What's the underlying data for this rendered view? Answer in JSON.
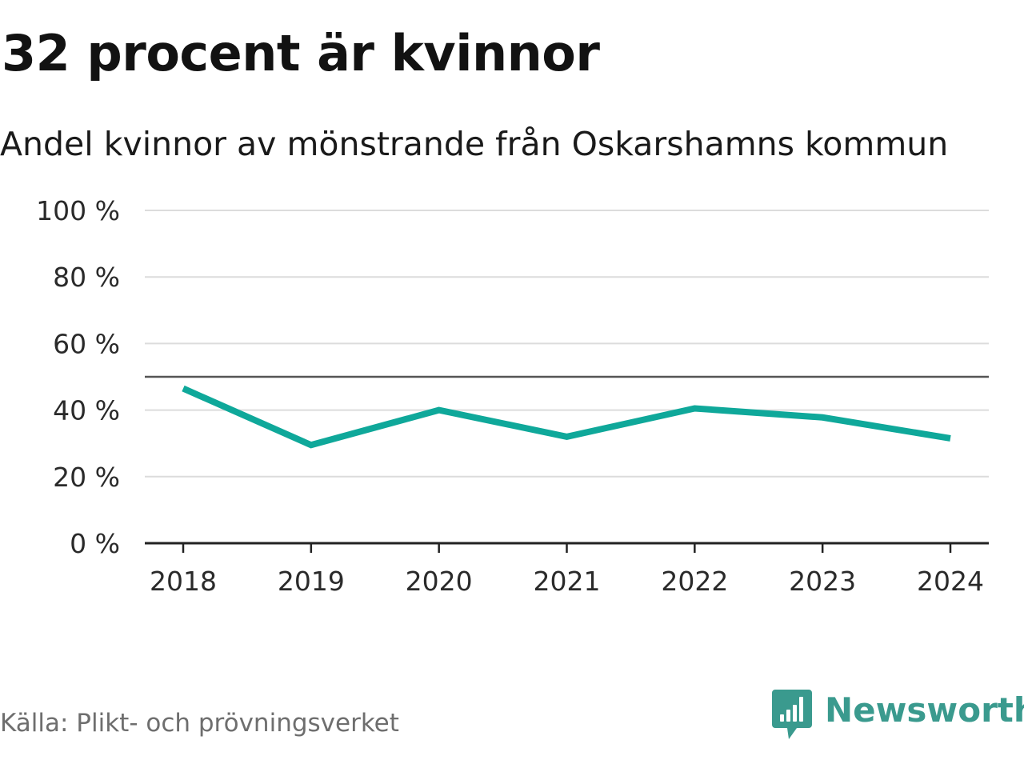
{
  "header": {
    "title": "32 procent är kvinnor",
    "subtitle": "Andel kvinnor av mönstrande från Oskarshamns kommun"
  },
  "footer": {
    "source": "Källa: Plikt- och prövningsverket",
    "brand": "Newsworthy"
  },
  "colors": {
    "line": "#0fa89a",
    "reference_line": "#555555",
    "grid": "#dcdcdc",
    "axis": "#222222",
    "brand": "#3a9a8e"
  },
  "icons": {
    "logo": "bar-chart-speech-bubble-icon"
  },
  "chart_data": {
    "type": "line",
    "title": "32 procent är kvinnor",
    "subtitle": "Andel kvinnor av mönstrande från Oskarshamns kommun",
    "xlabel": "",
    "ylabel": "",
    "categories": [
      "2018",
      "2019",
      "2020",
      "2021",
      "2022",
      "2023",
      "2024"
    ],
    "series": [
      {
        "values": [
          46.5,
          29.5,
          40,
          32,
          40.5,
          37.8,
          31.5
        ]
      }
    ],
    "reference_line": 50,
    "ylim": [
      0,
      100
    ],
    "yticks": [
      0,
      20,
      40,
      60,
      80,
      100
    ],
    "ytick_labels": [
      "0 %",
      "20 %",
      "40 %",
      "60 %",
      "80 %",
      "100 %"
    ],
    "grid": true,
    "legend": "none"
  }
}
